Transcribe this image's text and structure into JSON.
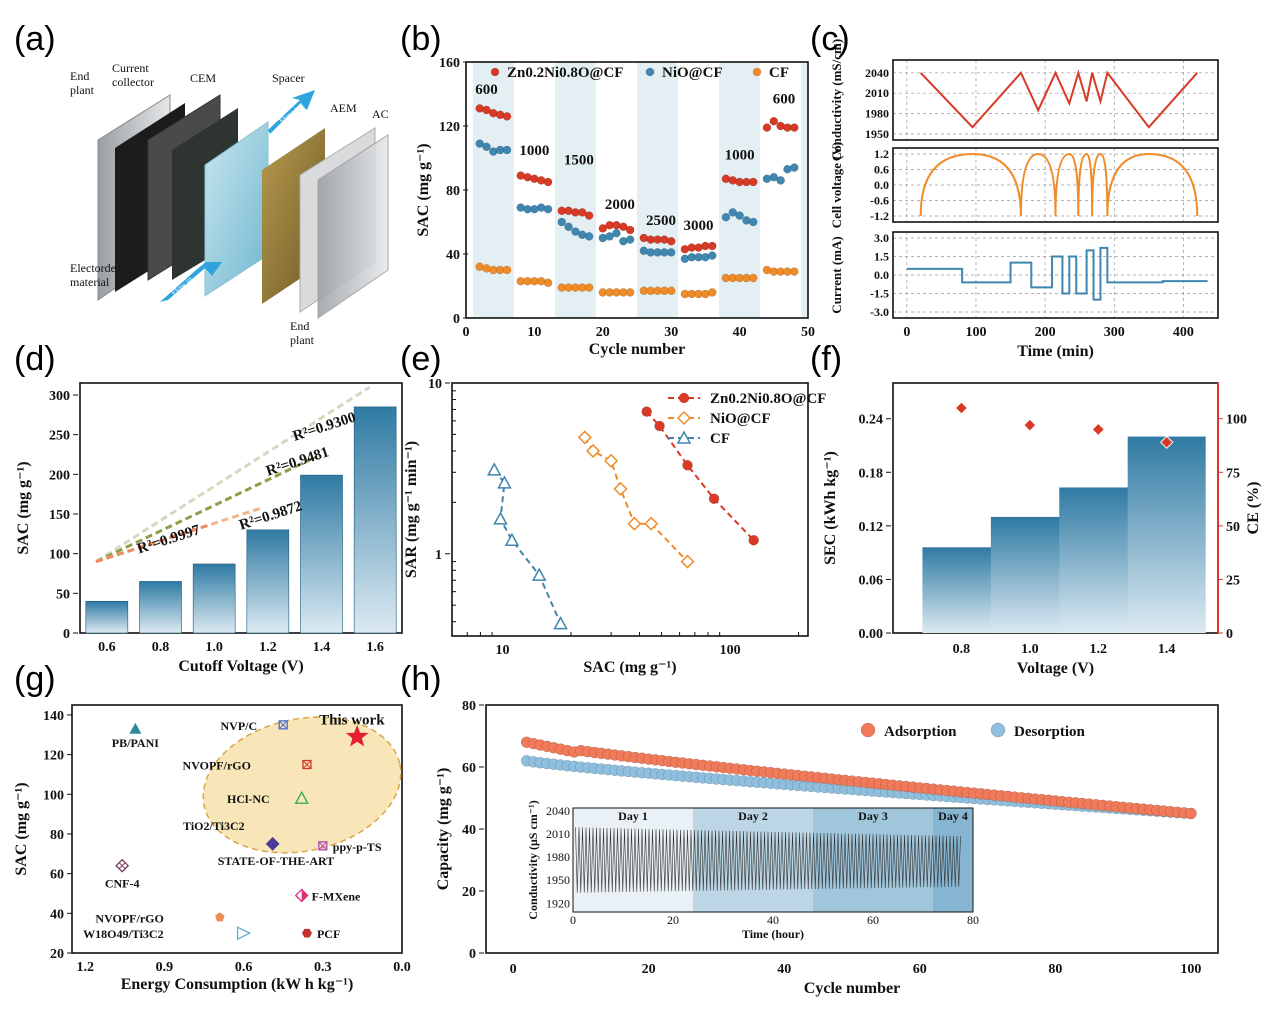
{
  "panel_labels": [
    "(a)",
    "(b)",
    "(c)",
    "(d)",
    "(e)",
    "(f)",
    "(g)",
    "(h)"
  ],
  "schematic": {
    "labels": {
      "end_plant_top": "End\nplant",
      "current_collector": "Current\ncollector",
      "cem": "CEM",
      "spacer": "Spacer",
      "aem": "AEM",
      "ac": "AC",
      "electrode": "Electorde\nmaterial",
      "end_plant_bottom": "End\nplant",
      "flow_in": "Flow in",
      "flow_out": "Flow out"
    }
  },
  "colors": {
    "zn": "#d83a26",
    "nio": "#3f86b0",
    "cf": "#ef8c28",
    "bar_top": "#2f7aa3",
    "bar_bottom": "#d9e8f1",
    "shade": "#e3eff3",
    "ce_red": "#d83a26"
  },
  "chart_data": [
    {
      "panel": "b",
      "type": "scatter",
      "xlabel": "Cycle number",
      "ylabel": "SAC (mg g⁻¹)",
      "xlim": [
        0,
        50
      ],
      "ylim": [
        0,
        160
      ],
      "xticks": [
        0,
        10,
        20,
        30,
        40,
        50
      ],
      "yticks": [
        0,
        40,
        80,
        120,
        160
      ],
      "rate_labels": [
        "600",
        "1000",
        "1500",
        "2000",
        "2500",
        "3000",
        "1000",
        "600"
      ],
      "rate_label_x": [
        3,
        10,
        16.5,
        22.5,
        28.5,
        34,
        40,
        46.5
      ],
      "rate_label_y": [
        140,
        102,
        96,
        68,
        58,
        55,
        99,
        134
      ],
      "shaded_bands": [
        [
          1,
          7
        ],
        [
          13,
          19
        ],
        [
          25,
          31
        ],
        [
          37,
          43
        ],
        [
          49,
          50
        ]
      ],
      "series": [
        {
          "name": "Zn0.2Ni0.8O@CF",
          "color": "zn",
          "x": [
            2,
            3,
            4,
            5,
            6,
            8,
            9,
            10,
            11,
            12,
            14,
            15,
            16,
            17,
            18,
            20,
            21,
            22,
            23,
            24,
            26,
            27,
            28,
            29,
            30,
            32,
            33,
            34,
            35,
            36,
            38,
            39,
            40,
            41,
            42,
            44,
            45,
            46,
            47,
            48
          ],
          "y": [
            131,
            130,
            128,
            127,
            126,
            89,
            88,
            87,
            86,
            85,
            67,
            67,
            66,
            66,
            64,
            56,
            58,
            58,
            57,
            55,
            50,
            49,
            49,
            49,
            48,
            43,
            44,
            44,
            45,
            45,
            87,
            86,
            85,
            85,
            85,
            119,
            123,
            120,
            119,
            119
          ]
        },
        {
          "name": "NiO@CF",
          "color": "nio",
          "x": [
            2,
            3,
            4,
            5,
            6,
            8,
            9,
            10,
            11,
            12,
            14,
            15,
            16,
            17,
            18,
            20,
            21,
            22,
            23,
            24,
            26,
            27,
            28,
            29,
            30,
            32,
            33,
            34,
            35,
            36,
            38,
            39,
            40,
            41,
            42,
            44,
            45,
            46,
            47,
            48
          ],
          "y": [
            109,
            107,
            104,
            105,
            105,
            69,
            68,
            68,
            69,
            68,
            60,
            57,
            54,
            52,
            51,
            50,
            51,
            53,
            48,
            49,
            42,
            41,
            41,
            41,
            41,
            37,
            38,
            38,
            38,
            39,
            63,
            66,
            64,
            61,
            60,
            87,
            88,
            86,
            93,
            94
          ]
        },
        {
          "name": "CF",
          "color": "cf",
          "x": [
            2,
            3,
            4,
            5,
            6,
            8,
            9,
            10,
            11,
            12,
            14,
            15,
            16,
            17,
            18,
            20,
            21,
            22,
            23,
            24,
            26,
            27,
            28,
            29,
            30,
            32,
            33,
            34,
            35,
            36,
            38,
            39,
            40,
            41,
            42,
            44,
            45,
            46,
            47,
            48
          ],
          "y": [
            32,
            31,
            30,
            30,
            30,
            23,
            23,
            23,
            23,
            22,
            19,
            19,
            19,
            19,
            19,
            16,
            16,
            16,
            16,
            16,
            17,
            17,
            17,
            17,
            17,
            15,
            15,
            15,
            15,
            16,
            25,
            25,
            25,
            25,
            25,
            30,
            29,
            29,
            29,
            29
          ]
        }
      ]
    },
    {
      "panel": "c",
      "type": "line",
      "xlabel": "Time (min)",
      "xlim": [
        -20,
        450
      ],
      "xticks": [
        0,
        100,
        200,
        300,
        400
      ],
      "subplots": [
        {
          "ylabel": "Conductivity (mS/cm)",
          "ylim": [
            1950,
            2050
          ],
          "yticks": [
            1950,
            1980,
            2010,
            2040
          ],
          "color": "zn",
          "x": [
            20,
            95,
            165,
            190,
            215,
            235,
            248,
            260,
            268,
            280,
            290,
            350,
            420
          ],
          "y": [
            2040,
            1960,
            2040,
            1985,
            2040,
            1995,
            2040,
            1998,
            2040,
            1998,
            2040,
            1960,
            2040
          ]
        },
        {
          "ylabel": "Cell voltage (V)",
          "ylim": [
            -1.2,
            1.2
          ],
          "yticks": [
            -1.2,
            -0.6,
            0.0,
            0.6,
            1.2
          ],
          "color": "cf",
          "x": [
            20,
            95,
            165,
            190,
            215,
            235,
            248,
            260,
            268,
            280,
            290,
            350,
            420
          ],
          "y": [
            -1.2,
            1.2,
            -1.2,
            1.2,
            -1.2,
            1.2,
            -1.2,
            1.2,
            -1.2,
            1.2,
            -1.2,
            1.2,
            -1.2
          ]
        },
        {
          "ylabel": "Current (mA)",
          "ylim": [
            -3.0,
            3.0
          ],
          "yticks": [
            -3.0,
            -1.5,
            0.0,
            1.5,
            3.0
          ],
          "color": "nio",
          "x": [
            0,
            80,
            80,
            150,
            150,
            180,
            180,
            210,
            210,
            225,
            225,
            235,
            235,
            245,
            245,
            260,
            260,
            270,
            270,
            280,
            280,
            290,
            290,
            370,
            370,
            435
          ],
          "y": [
            0.5,
            0.5,
            -0.6,
            -0.6,
            1.0,
            1.0,
            -1.0,
            -1.0,
            1.5,
            1.5,
            -1.5,
            -1.5,
            1.5,
            1.5,
            -1.5,
            -1.5,
            2.0,
            2.0,
            -2.0,
            -2.0,
            2.2,
            2.2,
            -0.6,
            -0.6,
            -0.5,
            -0.5
          ]
        }
      ]
    },
    {
      "panel": "d",
      "type": "bar",
      "xlabel": "Cutoff Voltage (V)",
      "ylabel": "SAC (mg g⁻¹)",
      "categories": [
        "0.6",
        "0.8",
        "1.0",
        "1.2",
        "1.4",
        "1.6"
      ],
      "values": [
        40,
        65,
        87,
        130,
        199,
        285
      ],
      "ylim": [
        0,
        300
      ],
      "yticks": [
        0,
        50,
        100,
        150,
        200,
        250,
        300
      ],
      "fits": [
        {
          "label": "R²=0.9300",
          "color": "#d9d6c0",
          "end": [
            1.58,
            310
          ],
          "label_at": [
            1.3,
            242
          ]
        },
        {
          "label": "R²=0.9481",
          "color": "#8f9e4a",
          "end": [
            1.38,
            222
          ],
          "label_at": [
            1.2,
            198
          ]
        },
        {
          "label": "R²=0.9872",
          "color": "#f2b488",
          "end": [
            1.18,
            158
          ],
          "label_at": [
            1.1,
            130
          ]
        },
        {
          "label": "R²=0.9997",
          "color": "#ef8a63",
          "end": [
            0.98,
            136
          ],
          "label_at": [
            0.72,
            100
          ]
        }
      ],
      "fit_start": [
        0.56,
        90
      ]
    },
    {
      "panel": "e",
      "type": "line",
      "xscale": "log",
      "yscale": "log",
      "xlabel": "SAC (mg g⁻¹)",
      "ylabel": "SAR (mg g⁻¹ min⁻¹)",
      "xlim": [
        6,
        220
      ],
      "ylim": [
        0.33,
        10
      ],
      "xticks": [
        10,
        100
      ],
      "yticks": [
        1,
        10
      ],
      "series": [
        {
          "name": "Zn0.2Ni0.8O@CF",
          "color": "zn",
          "marker": "circle",
          "x": [
            43,
            49,
            65,
            85,
            127
          ],
          "y": [
            6.8,
            5.6,
            3.3,
            2.1,
            1.2
          ]
        },
        {
          "name": "NiO@CF",
          "color": "cf",
          "marker": "diamond",
          "x": [
            23,
            25,
            30,
            33,
            38,
            45,
            65
          ],
          "y": [
            4.8,
            4.0,
            3.5,
            2.4,
            1.5,
            1.5,
            0.9
          ]
        },
        {
          "name": "CF",
          "color": "nio",
          "marker": "triangle",
          "x": [
            9.2,
            10.2,
            9.8,
            11.0,
            14.5,
            18
          ],
          "y": [
            3.1,
            2.6,
            1.6,
            1.2,
            0.75,
            0.39
          ]
        }
      ]
    },
    {
      "panel": "f",
      "type": "bar",
      "xlabel": "Voltage (V)",
      "ylabel": "SEC (kWh kg⁻¹)",
      "y2label": "CE (%)",
      "categories": [
        "0.8",
        "1.0",
        "1.2",
        "1.4"
      ],
      "values": [
        0.096,
        0.13,
        0.163,
        0.22
      ],
      "ylim": [
        0,
        0.28
      ],
      "yticks": [
        0.0,
        0.06,
        0.12,
        0.18,
        0.24
      ],
      "y2lim": [
        0,
        116.67
      ],
      "y2ticks": [
        0,
        25,
        50,
        75,
        100
      ],
      "ce": [
        105,
        97,
        95,
        89
      ]
    },
    {
      "panel": "g",
      "type": "scatter",
      "xlabel": "Energy Consumption (kW h kg⁻¹)",
      "ylabel": "SAC (mg g⁻¹)",
      "xlim": [
        1.25,
        0.0
      ],
      "ylim": [
        20,
        145
      ],
      "xticks": [
        1.2,
        0.9,
        0.6,
        0.3,
        0.0
      ],
      "yticks": [
        20,
        40,
        60,
        80,
        100,
        120,
        140
      ],
      "highlight_text": "STATE-OF-THE-ART",
      "points": [
        {
          "label": "This work",
          "x": 0.17,
          "y": 129,
          "color": "#e5202e",
          "marker": "star"
        },
        {
          "label": "PB/PANI",
          "x": 1.01,
          "y": 133,
          "color": "#2a8a9a",
          "marker": "triangle"
        },
        {
          "label": "NVP/C",
          "x": 0.45,
          "y": 135,
          "color": "#4a6fd1",
          "marker": "xbox"
        },
        {
          "label": "NVOPF/rGO",
          "x": 0.36,
          "y": 115,
          "color": "#d13a2a",
          "marker": "xbox"
        },
        {
          "label": "HCl-NC",
          "x": 0.38,
          "y": 98,
          "color": "#2aa84a",
          "marker": "otriangle"
        },
        {
          "label": "TiO2/Ti3C2",
          "x": 0.49,
          "y": 75,
          "color": "#4b3a9a",
          "marker": "diamond"
        },
        {
          "label": "ppy-p-TS",
          "x": 0.3,
          "y": 74,
          "color": "#b04ab0",
          "marker": "xbox"
        },
        {
          "label": "CNF-4",
          "x": 1.06,
          "y": 64,
          "color": "#7a3a5a",
          "marker": "xdiamond"
        },
        {
          "label": "F-MXene",
          "x": 0.38,
          "y": 49,
          "color": "#e0307a",
          "marker": "hdiamond"
        },
        {
          "label": "NVOPF/rGO",
          "x": 0.69,
          "y": 38,
          "color": "#ef8c5a",
          "marker": "pentagon"
        },
        {
          "label": "W18O49/Ti3C2",
          "x": 0.6,
          "y": 30,
          "color": "#5ab0d0",
          "marker": "rtriangle"
        },
        {
          "label": "PCF",
          "x": 0.36,
          "y": 30,
          "color": "#c03030",
          "marker": "hexagon"
        }
      ]
    },
    {
      "panel": "h",
      "type": "scatter",
      "xlabel": "Cycle number",
      "ylabel": "Capacity (mg g⁻¹)",
      "xlim": [
        -4,
        104
      ],
      "ylim": [
        0,
        80
      ],
      "xticks": [
        0,
        20,
        40,
        60,
        80,
        100
      ],
      "yticks": [
        0,
        20,
        40,
        60,
        80
      ],
      "series": [
        {
          "name": "Adsorption",
          "color": "#f07a5a",
          "x_start": 2,
          "x_end": 100,
          "y_start": 68,
          "y_end": 45
        },
        {
          "name": "Desorption",
          "color": "#8fbfde",
          "x_start": 2,
          "x_end": 100,
          "y_start": 62,
          "y_end": 45
        }
      ],
      "inset": {
        "xlabel": "Time (hour)",
        "ylabel": "Conductivity (μS cm⁻¹)",
        "xlim": [
          0,
          80
        ],
        "ylim": [
          1910,
          2045
        ],
        "xticks": [
          0,
          20,
          40,
          60,
          80
        ],
        "yticks": [
          1920,
          1950,
          1980,
          2010,
          2040
        ],
        "days": [
          "Day 1",
          "Day 2",
          "Day 3",
          "Day 4"
        ],
        "day_bounds": [
          [
            0,
            24
          ],
          [
            24,
            48
          ],
          [
            48,
            72
          ],
          [
            72,
            80
          ]
        ],
        "oscillation_high": 2020,
        "oscillation_low": 1935,
        "cycles": 110
      }
    }
  ]
}
